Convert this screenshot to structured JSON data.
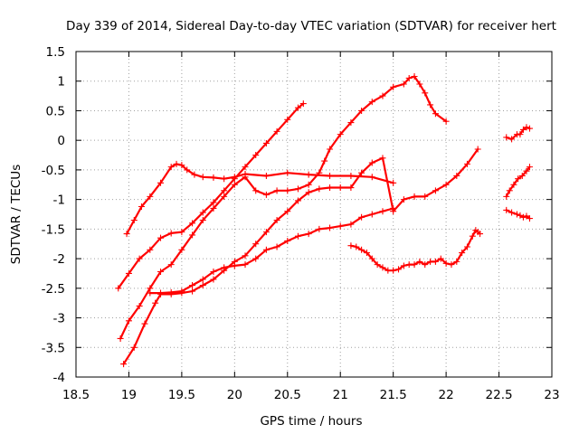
{
  "chart_data": {
    "type": "scatter",
    "title": "Day 339 of 2014, Sidereal Day-to-day VTEC variation (SDTVAR) for receiver hert",
    "xlabel": "GPS time / hours",
    "ylabel": "SDTVAR / TECUs",
    "xlim": [
      18.5,
      23
    ],
    "ylim": [
      -4,
      1.5
    ],
    "xticks": [
      "18.5",
      "19",
      "19.5",
      "20",
      "20.5",
      "21",
      "21.5",
      "22",
      "22.5",
      "23"
    ],
    "yticks": [
      "1.5",
      "1",
      "0.5",
      "0",
      "-0.5",
      "-1",
      "-1.5",
      "-2",
      "-2.5",
      "-3",
      "-3.5",
      "-4"
    ],
    "grid": true,
    "marker": "+",
    "color": "#ff0000",
    "series": [
      {
        "x": [
          18.98,
          19.05,
          19.12,
          19.2,
          19.3,
          19.4,
          19.45,
          19.5,
          19.55,
          19.62,
          19.7,
          19.8,
          19.9,
          20.0,
          20.1,
          20.3,
          20.5,
          20.7,
          20.9,
          21.1,
          21.3,
          21.5
        ],
        "y": [
          -1.58,
          -1.35,
          -1.12,
          -0.95,
          -0.72,
          -0.45,
          -0.4,
          -0.42,
          -0.5,
          -0.58,
          -0.62,
          -0.63,
          -0.65,
          -0.62,
          -0.57,
          -0.6,
          -0.55,
          -0.58,
          -0.6,
          -0.6,
          -0.62,
          -0.72
        ]
      },
      {
        "x": [
          18.9,
          19.0,
          19.1,
          19.2,
          19.3,
          19.4,
          19.5,
          19.6,
          19.7,
          19.8,
          19.9,
          20.0,
          20.1,
          20.2,
          20.3,
          20.4,
          20.5,
          20.6,
          20.65
        ],
        "y": [
          -2.5,
          -2.25,
          -2.0,
          -1.85,
          -1.65,
          -1.57,
          -1.55,
          -1.4,
          -1.22,
          -1.05,
          -0.85,
          -0.65,
          -0.45,
          -0.25,
          -0.05,
          0.15,
          0.35,
          0.55,
          0.62
        ]
      },
      {
        "x": [
          18.92,
          19.0,
          19.1,
          19.2,
          19.3,
          19.4,
          19.5,
          19.6,
          19.7,
          19.8,
          19.9,
          20.0,
          20.1,
          20.2,
          20.3,
          20.4,
          20.5,
          20.6,
          20.7,
          20.8,
          20.85,
          20.9,
          21.0,
          21.1,
          21.2,
          21.3,
          21.4,
          21.5,
          21.6,
          21.65,
          21.7,
          21.75,
          21.8,
          21.85,
          21.9,
          22.0
        ],
        "y": [
          -3.35,
          -3.05,
          -2.8,
          -2.5,
          -2.22,
          -2.1,
          -1.85,
          -1.6,
          -1.35,
          -1.15,
          -0.95,
          -0.75,
          -0.62,
          -0.85,
          -0.92,
          -0.85,
          -0.85,
          -0.82,
          -0.75,
          -0.55,
          -0.35,
          -0.15,
          0.1,
          0.3,
          0.5,
          0.65,
          0.75,
          0.9,
          0.95,
          1.05,
          1.08,
          0.95,
          0.8,
          0.6,
          0.45,
          0.32
        ]
      },
      {
        "x": [
          18.95,
          19.05,
          19.15,
          19.25,
          19.3,
          19.4,
          19.5,
          19.6,
          19.7,
          19.8,
          19.9,
          20.0,
          20.1,
          20.2,
          20.3,
          20.4,
          20.5,
          20.6,
          20.7,
          20.8,
          20.9,
          21.0,
          21.1,
          21.2,
          21.3,
          21.4,
          21.5,
          21.6,
          21.7,
          21.8,
          21.9,
          22.0,
          22.1,
          22.2,
          22.3
        ],
        "y": [
          -3.78,
          -3.5,
          -3.1,
          -2.75,
          -2.6,
          -2.6,
          -2.58,
          -2.55,
          -2.45,
          -2.35,
          -2.2,
          -2.05,
          -1.95,
          -1.75,
          -1.55,
          -1.35,
          -1.2,
          -1.02,
          -0.88,
          -0.82,
          -0.8,
          -0.8,
          -0.8,
          -0.55,
          -0.38,
          -0.3,
          -1.2,
          -1.0,
          -0.95,
          -0.95,
          -0.85,
          -0.75,
          -0.6,
          -0.4,
          -0.15
        ]
      },
      {
        "x": [
          19.2,
          19.3,
          19.4,
          19.5,
          19.6,
          19.7,
          19.8,
          19.9,
          20.0,
          20.1,
          20.2,
          20.3,
          20.4,
          20.5,
          20.6,
          20.7,
          20.8,
          20.9,
          21.0,
          21.1,
          21.2,
          21.3,
          21.4,
          21.5
        ],
        "y": [
          -2.58,
          -2.58,
          -2.57,
          -2.55,
          -2.45,
          -2.35,
          -2.22,
          -2.15,
          -2.12,
          -2.1,
          -2.0,
          -1.85,
          -1.8,
          -1.7,
          -1.62,
          -1.58,
          -1.5,
          -1.48,
          -1.45,
          -1.42,
          -1.3,
          -1.25,
          -1.2,
          -1.15
        ]
      },
      {
        "x": [
          21.1,
          21.15,
          21.2,
          21.25,
          21.3,
          21.35,
          21.4,
          21.45,
          21.5,
          21.55,
          21.6,
          21.65,
          21.7,
          21.75,
          21.8,
          21.85,
          21.9,
          21.95,
          22.0,
          22.05,
          22.1,
          22.15,
          22.2,
          22.25,
          22.28,
          22.3,
          22.32
        ],
        "y": [
          -1.78,
          -1.8,
          -1.85,
          -1.9,
          -2.0,
          -2.1,
          -2.15,
          -2.2,
          -2.2,
          -2.18,
          -2.12,
          -2.1,
          -2.1,
          -2.05,
          -2.1,
          -2.05,
          -2.05,
          -2.0,
          -2.08,
          -2.1,
          -2.05,
          -1.9,
          -1.8,
          -1.62,
          -1.52,
          -1.55,
          -1.58
        ]
      },
      {
        "x": [
          22.57,
          22.62,
          22.67,
          22.7,
          22.73,
          22.76,
          22.79
        ],
        "y": [
          0.05,
          0.02,
          0.1,
          0.1,
          0.18,
          0.22,
          0.2
        ]
      },
      {
        "x": [
          22.57,
          22.6,
          22.64,
          22.68,
          22.72,
          22.76,
          22.79
        ],
        "y": [
          -0.95,
          -0.85,
          -0.75,
          -0.65,
          -0.6,
          -0.52,
          -0.45
        ]
      },
      {
        "x": [
          22.57,
          22.62,
          22.67,
          22.7,
          22.73,
          22.76,
          22.79
        ],
        "y": [
          -1.18,
          -1.22,
          -1.25,
          -1.27,
          -1.3,
          -1.28,
          -1.32
        ]
      }
    ]
  }
}
